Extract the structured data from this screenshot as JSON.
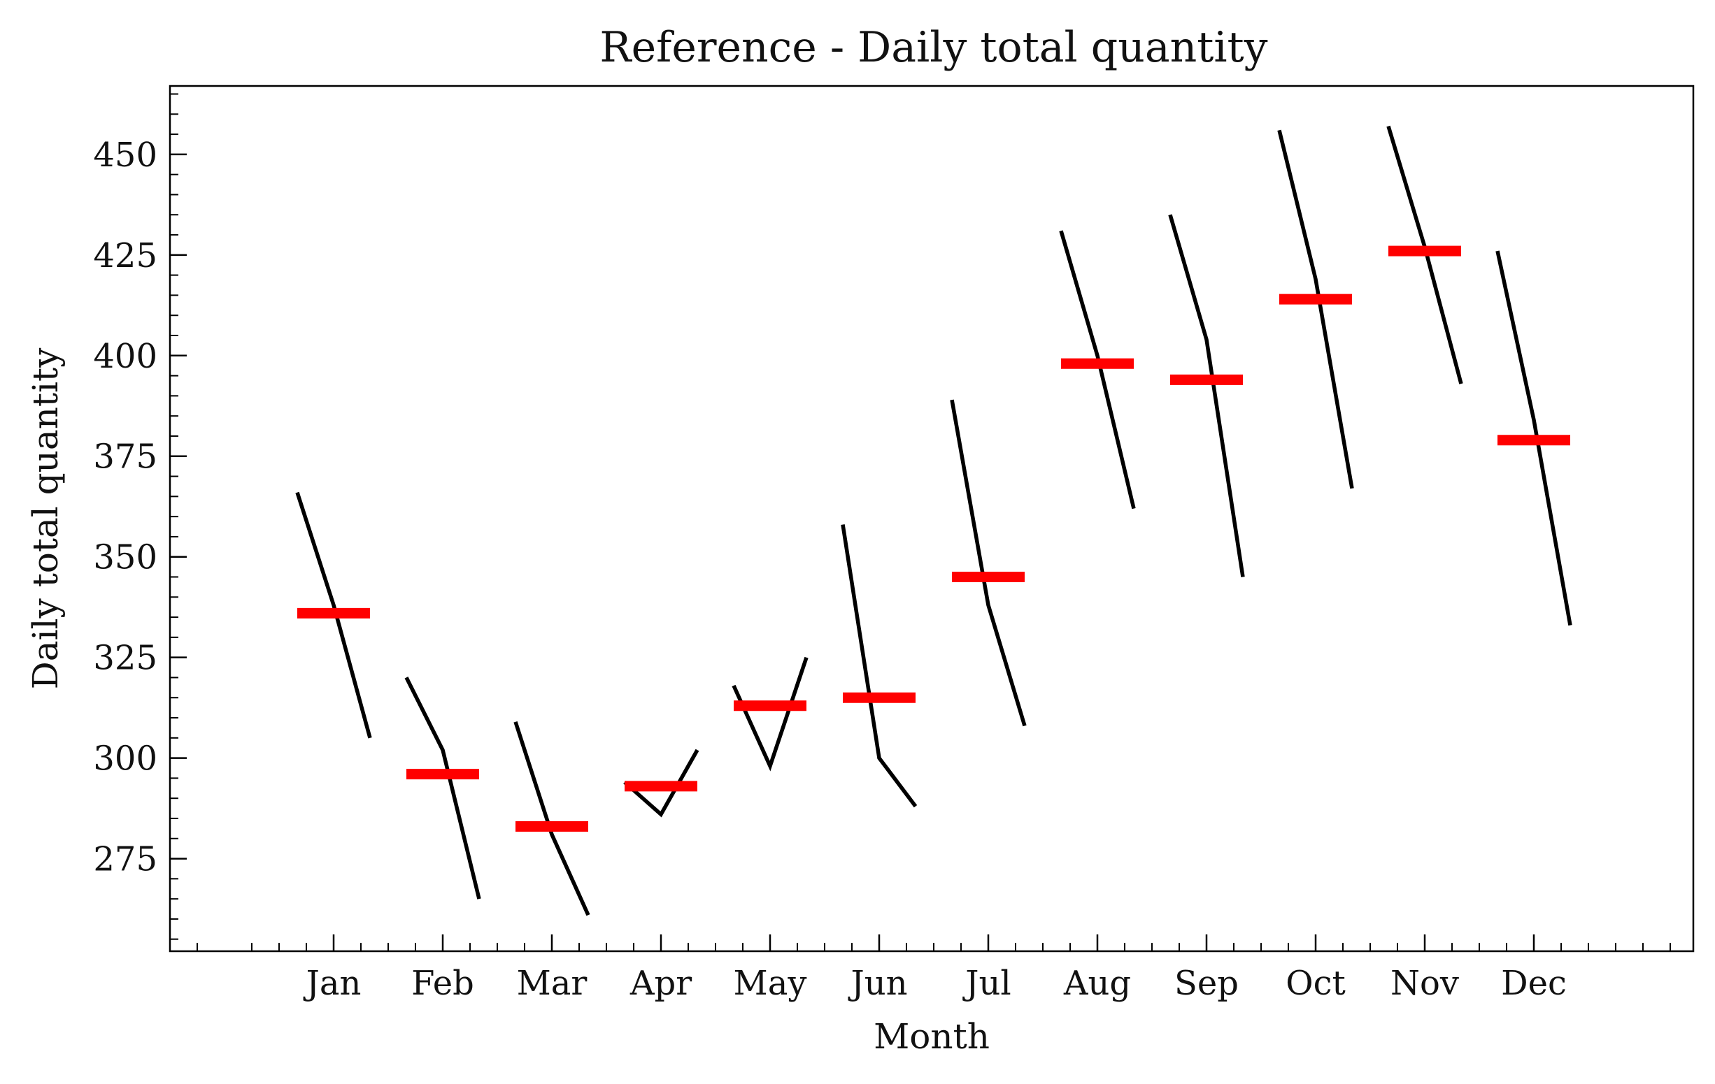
{
  "chart_data": {
    "type": "line",
    "title": "Reference - Daily total quantity",
    "xlabel": "Month",
    "ylabel": "Daily total quantity",
    "categories": [
      "Jan",
      "Feb",
      "Mar",
      "Apr",
      "May",
      "Jun",
      "Jul",
      "Aug",
      "Sep",
      "Oct",
      "Nov",
      "Dec"
    ],
    "ylim": [
      252,
      467
    ],
    "yticks": [
      275,
      300,
      325,
      350,
      375,
      400,
      425,
      450
    ],
    "grid": false,
    "legend": "none",
    "colors": {
      "series": "#000000",
      "mean": "#ff0000"
    },
    "series": [
      {
        "values_by_category": [
          [
            366,
            338,
            305
          ],
          [
            320,
            302,
            265
          ],
          [
            309,
            281,
            261
          ],
          [
            294,
            286,
            302
          ],
          [
            318,
            298,
            325
          ],
          [
            358,
            300,
            288
          ],
          [
            389,
            338,
            308
          ],
          [
            431,
            400,
            362
          ],
          [
            435,
            404,
            345
          ],
          [
            456,
            419,
            367
          ],
          [
            457,
            427,
            393
          ],
          [
            426,
            384,
            333
          ]
        ]
      }
    ],
    "means": [
      336,
      296,
      283,
      293,
      313,
      315,
      345,
      398,
      394,
      414,
      426,
      379
    ]
  }
}
